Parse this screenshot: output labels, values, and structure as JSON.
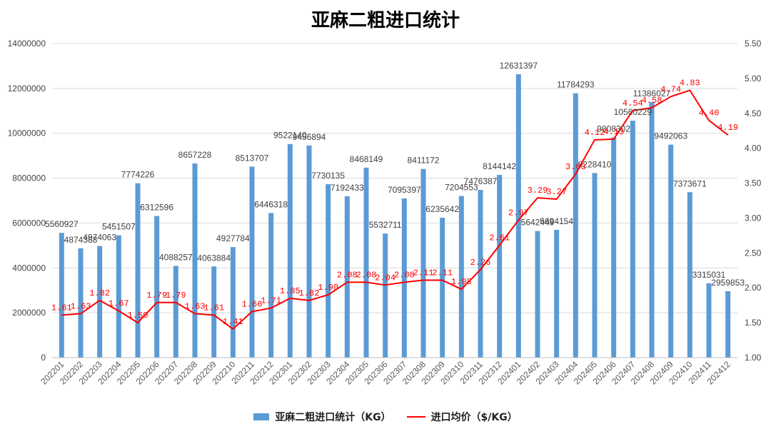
{
  "chart_data": {
    "type": "bar",
    "title": "亚麻二粗进口统计",
    "categories": [
      "202201",
      "202202",
      "202203",
      "202204",
      "202205",
      "202206",
      "202207",
      "202208",
      "202209",
      "202210",
      "202211",
      "202212",
      "202301",
      "202302",
      "202303",
      "202304",
      "202305",
      "202306",
      "202307",
      "202308",
      "202309",
      "202310",
      "202311",
      "202312",
      "202401",
      "202402",
      "202403",
      "202404",
      "202405",
      "202406",
      "202407",
      "202408",
      "202409",
      "202410",
      "202411",
      "202412"
    ],
    "series": [
      {
        "name": "亚麻二粗进口统计（KG）",
        "type": "bar",
        "axis": "left",
        "color": "#5b9bd5",
        "values": [
          5560927,
          4874388,
          4974063,
          5451507,
          7774226,
          6312596,
          4088257,
          8657228,
          4063884,
          4927784,
          8513707,
          6446318,
          9522140,
          9456894,
          7730135,
          7192433,
          8468149,
          5532711,
          7095397,
          8411172,
          6235642,
          7204553,
          7476387,
          8144142,
          12631397,
          5642449,
          5694154,
          11784293,
          8228410,
          9808302,
          10560229,
          11386027,
          9492063,
          7373671,
          3315031,
          2959853
        ],
        "labels": [
          "5560927",
          "4874388",
          "4974063",
          "5451507",
          "7774226",
          "6312596",
          "4088257",
          "8657228",
          "4063884",
          "4927784",
          "8513707",
          "6446318",
          "9522140",
          "9456894",
          "7730135",
          "7192433",
          "8468149",
          "5532711",
          "7095397",
          "8411172",
          "6235642",
          "7204553",
          "7476387",
          "8144142",
          "12631397",
          "5642449",
          "5694154",
          "11784293",
          "8228410",
          "9808302",
          "10560229",
          "11386027",
          "9492063",
          "7373671",
          "3315031",
          "2959853"
        ]
      },
      {
        "name": "进口均价（$/KG）",
        "type": "line",
        "axis": "right",
        "color": "#ff0000",
        "values": [
          1.61,
          1.63,
          1.82,
          1.67,
          1.5,
          1.79,
          1.79,
          1.63,
          1.61,
          1.41,
          1.66,
          1.71,
          1.85,
          1.82,
          1.9,
          2.08,
          2.08,
          2.04,
          2.08,
          2.11,
          2.11,
          1.98,
          2.26,
          2.61,
          2.97,
          3.29,
          3.27,
          3.63,
          4.12,
          4.13,
          4.54,
          4.58,
          4.74,
          4.83,
          4.4,
          4.19
        ],
        "labels": [
          "1.61",
          "1.63",
          "1.82",
          "1.67",
          "1.50",
          "1.79",
          "1.79",
          "1.63",
          "1.61",
          "1.41",
          "1.66",
          "1.71",
          "1.85",
          "1.82",
          "1.90",
          "2.08",
          "2.08",
          "2.04",
          "2.08",
          "2.11",
          "2.11",
          "1.98",
          "2.26",
          "2.61",
          "2.97",
          "3.29",
          "3.27",
          "3.63",
          "4.12",
          "4.13",
          "4.54",
          "4.58",
          "4.74",
          "4.83",
          "4.40",
          "4.19"
        ]
      }
    ],
    "y_left": {
      "ylim": [
        0,
        14000000
      ],
      "ticks": [
        "0",
        "2000000",
        "4000000",
        "6000000",
        "8000000",
        "10000000",
        "12000000",
        "14000000"
      ]
    },
    "y_right": {
      "ylim": [
        1.0,
        5.5
      ],
      "ticks": [
        "1.00",
        "1.50",
        "2.00",
        "2.50",
        "3.00",
        "3.50",
        "4.00",
        "4.50",
        "5.00",
        "5.50"
      ]
    },
    "grid": "horizontal",
    "legend": "bottom",
    "xlabel": "",
    "ylabel": ""
  },
  "legend": {
    "bar_label": "亚麻二粗进口统计（KG）",
    "line_label": "进口均价（$/KG）"
  }
}
